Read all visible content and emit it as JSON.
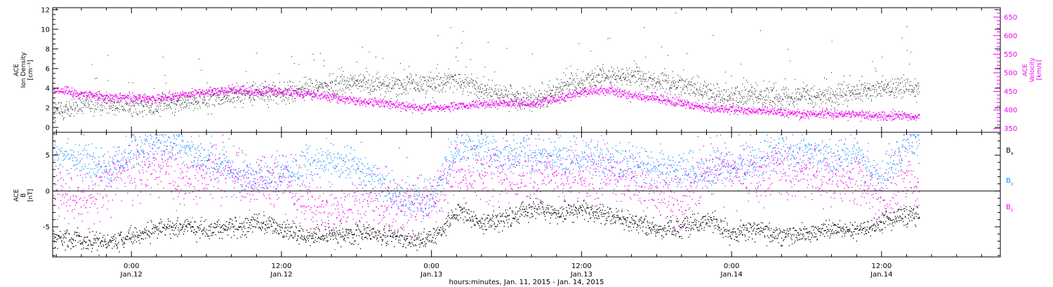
{
  "figure": {
    "xlabel": "hours:minutes, Jan. 11, 2015 - Jan. 14, 2015",
    "x_range_hours": [
      -6.3,
      69.5
    ],
    "x_ticks": [
      {
        "h": 0,
        "time": "0:00",
        "date": "Jan.12"
      },
      {
        "h": 12,
        "time": "12:00",
        "date": "Jan.12"
      },
      {
        "h": 24,
        "time": "0:00",
        "date": "Jan.13"
      },
      {
        "h": 36,
        "time": "12:00",
        "date": "Jan.13"
      },
      {
        "h": 48,
        "time": "0:00",
        "date": "Jan.14"
      },
      {
        "h": 60,
        "time": "12:00",
        "date": "Jan.14"
      }
    ],
    "data_end_hours": 63
  },
  "colors": {
    "black": "#000000",
    "magenta": "#ee00ee",
    "blue": "#1a8cff"
  },
  "chart_data": [
    {
      "type": "scatter",
      "panel": "top",
      "ylabel_left": [
        "ACE",
        "Ion Density",
        "[cm⁻³]"
      ],
      "ylabel_right": [
        "ACE",
        "Velocity",
        "[km/s]"
      ],
      "ylim_left": [
        -0.5,
        12.2
      ],
      "yticks_left": [
        0,
        2,
        4,
        6,
        8,
        10,
        12
      ],
      "ylim_right": [
        340,
        675
      ],
      "yticks_right": [
        350,
        400,
        450,
        500,
        550,
        600,
        650
      ],
      "series": [
        {
          "axis": "left",
          "color": "black",
          "points": [
            [
              -6,
              1.6
            ],
            [
              -4,
              2.2
            ],
            [
              -2,
              2.6
            ],
            [
              0,
              2.1
            ],
            [
              2,
              2.3
            ],
            [
              4,
              2.6
            ],
            [
              6,
              3.0
            ],
            [
              8,
              3.3
            ],
            [
              10,
              3.6
            ],
            [
              12,
              3.4
            ],
            [
              14,
              3.9
            ],
            [
              16,
              4.3
            ],
            [
              18,
              4.6
            ],
            [
              20,
              4.3
            ],
            [
              22,
              4.3
            ],
            [
              24,
              4.6
            ],
            [
              26,
              4.9
            ],
            [
              28,
              3.8
            ],
            [
              30,
              3.2
            ],
            [
              32,
              2.6
            ],
            [
              34,
              3.8
            ],
            [
              36,
              4.9
            ],
            [
              38,
              5.3
            ],
            [
              40,
              5.2
            ],
            [
              42,
              4.6
            ],
            [
              44,
              4.3
            ],
            [
              46,
              3.6
            ],
            [
              48,
              3.2
            ],
            [
              50,
              3.3
            ],
            [
              52,
              3.2
            ],
            [
              54,
              3.4
            ],
            [
              56,
              2.9
            ],
            [
              58,
              3.6
            ],
            [
              60,
              4.0
            ],
            [
              62,
              4.3
            ],
            [
              63,
              4.0
            ]
          ],
          "spikes": [
            [
              2.5,
              7.2
            ],
            [
              10,
              7.6
            ],
            [
              14.5,
              7.5
            ],
            [
              18,
              6.7
            ],
            [
              19,
              7.7
            ],
            [
              24.5,
              9.4
            ],
            [
              25.5,
              10.2
            ],
            [
              26.5,
              9.8
            ],
            [
              28.5,
              8.7
            ],
            [
              30,
              8.1
            ],
            [
              36.7,
              7.8
            ],
            [
              41,
              10.2
            ],
            [
              43.5,
              11.7
            ],
            [
              46.5,
              9.4
            ],
            [
              50.3,
              9.9
            ],
            [
              52.5,
              8.0
            ],
            [
              56,
              8.8
            ],
            [
              60,
              7.2
            ],
            [
              62,
              10.3
            ]
          ]
        },
        {
          "axis": "right",
          "color": "magenta",
          "points": [
            [
              -6,
              455
            ],
            [
              -4,
              445
            ],
            [
              -2,
              435
            ],
            [
              0,
              435
            ],
            [
              2,
              430
            ],
            [
              4,
              440
            ],
            [
              6,
              450
            ],
            [
              8,
              455
            ],
            [
              10,
              448
            ],
            [
              12,
              452
            ],
            [
              14,
              445
            ],
            [
              16,
              435
            ],
            [
              18,
              425
            ],
            [
              20,
              420
            ],
            [
              22,
              410
            ],
            [
              24,
              408
            ],
            [
              26,
              410
            ],
            [
              28,
              415
            ],
            [
              30,
              420
            ],
            [
              32,
              418
            ],
            [
              34,
              430
            ],
            [
              36,
              450
            ],
            [
              38,
              455
            ],
            [
              40,
              440
            ],
            [
              42,
              432
            ],
            [
              44,
              420
            ],
            [
              46,
              405
            ],
            [
              48,
              402
            ],
            [
              50,
              398
            ],
            [
              52,
              395
            ],
            [
              54,
              390
            ],
            [
              56,
              392
            ],
            [
              58,
              388
            ],
            [
              60,
              385
            ],
            [
              62,
              385
            ],
            [
              63,
              383
            ]
          ]
        }
      ]
    },
    {
      "type": "scatter",
      "panel": "bottom",
      "ylabel_left": [
        "ACE",
        "B",
        "[nT]"
      ],
      "ylim": [
        -9.2,
        8.2
      ],
      "yticks": [
        -5,
        0,
        5
      ],
      "zero_line": true,
      "legend": [
        {
          "label": "B",
          "sub": "x",
          "color": "black"
        },
        {
          "label": "B",
          "sub": "y",
          "color": "blue"
        },
        {
          "label": "B",
          "sub": "z",
          "color": "magenta"
        }
      ],
      "series": [
        {
          "name": "Bx",
          "color": "black",
          "points": [
            [
              -6,
              -6.5
            ],
            [
              -4,
              -6.8
            ],
            [
              -2,
              -7.1
            ],
            [
              0,
              -6.3
            ],
            [
              2,
              -5.2
            ],
            [
              4,
              -4.8
            ],
            [
              6,
              -5.3
            ],
            [
              8,
              -5.0
            ],
            [
              10,
              -4.4
            ],
            [
              12,
              -5.2
            ],
            [
              14,
              -6.3
            ],
            [
              16,
              -6.0
            ],
            [
              18,
              -5.8
            ],
            [
              20,
              -6.1
            ],
            [
              22,
              -6.8
            ],
            [
              24,
              -6.5
            ],
            [
              26,
              -3.0
            ],
            [
              28,
              -4.5
            ],
            [
              30,
              -3.8
            ],
            [
              32,
              -2.4
            ],
            [
              34,
              -3.1
            ],
            [
              36,
              -2.5
            ],
            [
              38,
              -3.3
            ],
            [
              40,
              -4.3
            ],
            [
              42,
              -5.3
            ],
            [
              44,
              -5.1
            ],
            [
              46,
              -3.8
            ],
            [
              48,
              -5.8
            ],
            [
              50,
              -5.3
            ],
            [
              52,
              -6.4
            ],
            [
              54,
              -5.9
            ],
            [
              56,
              -5.2
            ],
            [
              58,
              -5.4
            ],
            [
              60,
              -4.3
            ],
            [
              62,
              -3.2
            ],
            [
              63,
              -3.0
            ]
          ]
        },
        {
          "name": "By",
          "color": "blue",
          "points": [
            [
              -6,
              5.3
            ],
            [
              -4,
              4.5
            ],
            [
              -2,
              2.8
            ],
            [
              0,
              5.5
            ],
            [
              2,
              6.8
            ],
            [
              4,
              6.3
            ],
            [
              6,
              4.2
            ],
            [
              8,
              3.0
            ],
            [
              10,
              1.8
            ],
            [
              12,
              2.5
            ],
            [
              14,
              3.5
            ],
            [
              16,
              4.2
            ],
            [
              18,
              3.6
            ],
            [
              20,
              1.0
            ],
            [
              22,
              -1.2
            ],
            [
              24,
              -1.2
            ],
            [
              26,
              6.8
            ],
            [
              28,
              5.0
            ],
            [
              30,
              5.2
            ],
            [
              32,
              5.3
            ],
            [
              34,
              4.8
            ],
            [
              36,
              4.6
            ],
            [
              38,
              4.4
            ],
            [
              40,
              3.8
            ],
            [
              42,
              3.4
            ],
            [
              44,
              2.9
            ],
            [
              46,
              3.2
            ],
            [
              48,
              3.4
            ],
            [
              50,
              4.3
            ],
            [
              52,
              5.6
            ],
            [
              54,
              5.3
            ],
            [
              56,
              4.9
            ],
            [
              58,
              5.0
            ],
            [
              60,
              1.0
            ],
            [
              62,
              6.6
            ],
            [
              63,
              7.0
            ]
          ]
        },
        {
          "name": "Bz",
          "color": "magenta",
          "points": [
            [
              -6,
              0.0
            ],
            [
              -4,
              -1.2
            ],
            [
              -2,
              1.2
            ],
            [
              0,
              2.6
            ],
            [
              2,
              3.2
            ],
            [
              4,
              2.0
            ],
            [
              6,
              2.6
            ],
            [
              8,
              2.4
            ],
            [
              10,
              0.8
            ],
            [
              12,
              1.6
            ],
            [
              14,
              -1.5
            ],
            [
              16,
              -3.0
            ],
            [
              18,
              -1.8
            ],
            [
              20,
              -2.0
            ],
            [
              22,
              -1.6
            ],
            [
              24,
              -1.4
            ],
            [
              26,
              2.5
            ],
            [
              28,
              2.0
            ],
            [
              30,
              1.8
            ],
            [
              32,
              2.4
            ],
            [
              34,
              2.2
            ],
            [
              36,
              2.0
            ],
            [
              38,
              2.2
            ],
            [
              40,
              1.5
            ],
            [
              42,
              -0.5
            ],
            [
              44,
              -1.5
            ],
            [
              46,
              3.2
            ],
            [
              48,
              2.5
            ],
            [
              50,
              2.0
            ],
            [
              52,
              2.8
            ],
            [
              54,
              3.0
            ],
            [
              56,
              1.5
            ],
            [
              58,
              2.0
            ],
            [
              60,
              -0.8
            ],
            [
              62,
              3.0
            ],
            [
              63,
              0.5
            ]
          ]
        }
      ]
    }
  ]
}
